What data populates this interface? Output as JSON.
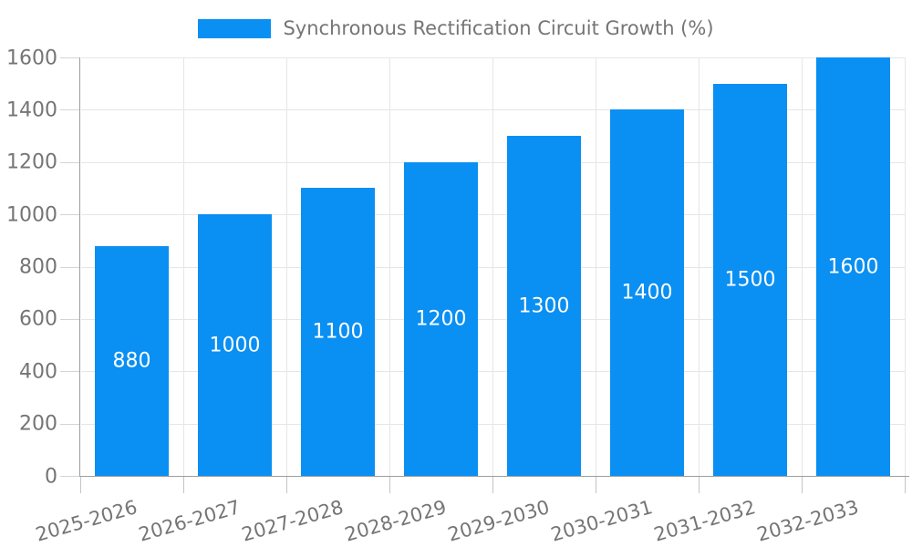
{
  "chart_data": {
    "type": "bar",
    "title": "",
    "legend": "Synchronous Rectification Circuit Growth (%)",
    "legend_position": "top-center",
    "categories": [
      "2025-2026",
      "2026-2027",
      "2027-2028",
      "2028-2029",
      "2029-2030",
      "2030-2031",
      "2031-2032",
      "2032-2033"
    ],
    "values": [
      880,
      1000,
      1100,
      1200,
      1300,
      1400,
      1500,
      1600
    ],
    "value_labels": [
      "880",
      "1000",
      "1100",
      "1200",
      "1300",
      "1400",
      "1500",
      "1600"
    ],
    "xlabel": "",
    "ylabel": "",
    "ylim": [
      0,
      1600
    ],
    "ytick_step": 200,
    "ytick_labels": [
      "0",
      "200",
      "400",
      "600",
      "800",
      "1000",
      "1200",
      "1400",
      "1600"
    ],
    "grid": "both",
    "colors": {
      "bar": "#0a8ff2",
      "value_text": "#ffffff",
      "axis_text": "#757575",
      "gridline": "#e6e6e6",
      "axis_line": "#9e9e9e"
    }
  }
}
